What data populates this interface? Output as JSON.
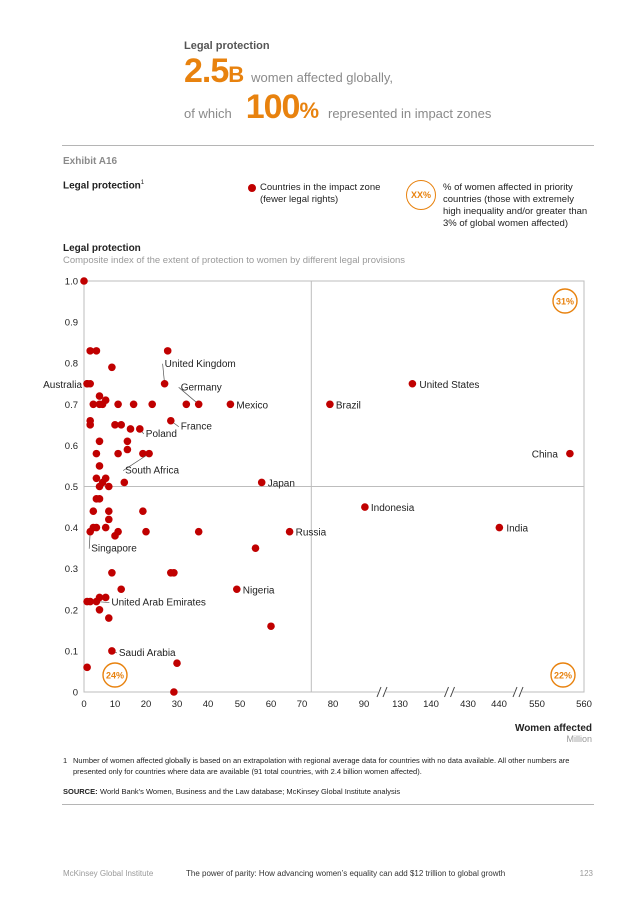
{
  "header": {
    "topic": "Legal protection",
    "stat1_value": "2.5",
    "stat1_unit": "B",
    "stat1_text": "women affected globally,",
    "stat2_prefix": "of which",
    "stat2_value": "100",
    "stat2_unit": "%",
    "stat2_text": "represented in impact zones"
  },
  "exhibit": "Exhibit A16",
  "legend": {
    "title": "Legal protection",
    "title_sup": "1",
    "dot_label": "Countries in the impact zone (fewer legal rights)",
    "badge_label": "XX%",
    "badge_desc": "% of women affected in priority countries (those with extremely high inequality and/or greater than 3% of global women affected)"
  },
  "chart_data": {
    "type": "scatter",
    "title": "Legal protection",
    "subtitle": "Composite index of the extent of protection to women by different legal provisions",
    "xlabel": "Women affected",
    "xunit": "Million",
    "x_ticks": [
      "0",
      "10",
      "20",
      "30",
      "40",
      "50",
      "60",
      "70",
      "80",
      "90",
      "130",
      "140",
      "430",
      "440",
      "550",
      "560"
    ],
    "y_ticks": [
      "0",
      "0.1",
      "0.2",
      "0.3",
      "0.4",
      "0.5",
      "0.6",
      "0.7",
      "0.8",
      "0.9",
      "1.0"
    ],
    "ylim": [
      0,
      1.0
    ],
    "x_axis_breaks": [
      [
        90,
        130
      ],
      [
        140,
        430
      ],
      [
        440,
        550
      ]
    ],
    "threshold_x": 73,
    "threshold_y": 0.5,
    "quadrant_labels": {
      "top_right": "31%",
      "bottom_left": "24%",
      "bottom_right": "22%"
    },
    "labeled_points": [
      {
        "name": "United Kingdom",
        "x": 26,
        "y": 0.75
      },
      {
        "name": "Australia",
        "x": 1,
        "y": 0.75
      },
      {
        "name": "Germany",
        "x": 37,
        "y": 0.7
      },
      {
        "name": "Mexico",
        "x": 47,
        "y": 0.7
      },
      {
        "name": "France",
        "x": 28,
        "y": 0.66
      },
      {
        "name": "Poland",
        "x": 18,
        "y": 0.64
      },
      {
        "name": "South Africa",
        "x": 21,
        "y": 0.58
      },
      {
        "name": "Japan",
        "x": 57,
        "y": 0.51
      },
      {
        "name": "Russia",
        "x": 66,
        "y": 0.39
      },
      {
        "name": "Nigeria",
        "x": 49,
        "y": 0.25
      },
      {
        "name": "United Arab Emirates",
        "x": 4,
        "y": 0.22
      },
      {
        "name": "Singapore",
        "x": 2,
        "y": 0.39
      },
      {
        "name": "Saudi Arabia",
        "x": 9,
        "y": 0.1
      },
      {
        "name": "Brazil",
        "x": 79,
        "y": 0.7
      },
      {
        "name": "United States",
        "x": 134,
        "y": 0.75
      },
      {
        "name": "Indonesia",
        "x": 91,
        "y": 0.45
      },
      {
        "name": "India",
        "x": 441,
        "y": 0.4
      },
      {
        "name": "China",
        "x": 557,
        "y": 0.58
      }
    ],
    "other_points": [
      [
        0,
        1.0
      ],
      [
        2,
        0.83
      ],
      [
        4,
        0.83
      ],
      [
        27,
        0.83
      ],
      [
        9,
        0.79
      ],
      [
        1,
        0.75
      ],
      [
        2,
        0.75
      ],
      [
        2,
        0.66
      ],
      [
        2,
        0.65
      ],
      [
        3,
        0.7
      ],
      [
        5,
        0.7
      ],
      [
        5,
        0.72
      ],
      [
        6,
        0.7
      ],
      [
        7,
        0.71
      ],
      [
        11,
        0.7
      ],
      [
        16,
        0.7
      ],
      [
        22,
        0.7
      ],
      [
        33,
        0.7
      ],
      [
        10,
        0.65
      ],
      [
        12,
        0.65
      ],
      [
        15,
        0.64
      ],
      [
        5,
        0.61
      ],
      [
        14,
        0.61
      ],
      [
        14,
        0.59
      ],
      [
        4,
        0.58
      ],
      [
        11,
        0.58
      ],
      [
        19,
        0.58
      ],
      [
        5,
        0.55
      ],
      [
        4,
        0.52
      ],
      [
        6,
        0.51
      ],
      [
        7,
        0.52
      ],
      [
        8,
        0.5
      ],
      [
        5,
        0.5
      ],
      [
        13,
        0.51
      ],
      [
        4,
        0.47
      ],
      [
        5,
        0.47
      ],
      [
        3,
        0.44
      ],
      [
        8,
        0.44
      ],
      [
        19,
        0.44
      ],
      [
        8,
        0.42
      ],
      [
        3,
        0.4
      ],
      [
        4,
        0.4
      ],
      [
        7,
        0.4
      ],
      [
        10,
        0.38
      ],
      [
        11,
        0.39
      ],
      [
        20,
        0.39
      ],
      [
        37,
        0.39
      ],
      [
        55,
        0.35
      ],
      [
        9,
        0.29
      ],
      [
        28,
        0.29
      ],
      [
        29,
        0.29
      ],
      [
        12,
        0.25
      ],
      [
        1,
        0.22
      ],
      [
        2,
        0.22
      ],
      [
        5,
        0.23
      ],
      [
        7,
        0.23
      ],
      [
        5,
        0.2
      ],
      [
        8,
        0.18
      ],
      [
        60,
        0.16
      ],
      [
        30,
        0.07
      ],
      [
        1,
        0.06
      ],
      [
        29,
        0.0
      ]
    ]
  },
  "footnote": {
    "num": "1",
    "text": "Number of women affected globally is based on an extrapolation with regional average data for countries with no data available. All other numbers are presented only for countries where data are available (91 total countries, with 2.4 billion women affected)."
  },
  "source": {
    "label": "SOURCE:",
    "text": "World Bank’s Women, Business and the Law database; McKinsey Global Institute analysis"
  },
  "footer": {
    "publisher": "McKinsey Global Institute",
    "doc_title": "The power of parity: How advancing women’s equality can add $12 trillion to global growth",
    "page": "123"
  },
  "colors": {
    "accent": "#e8820e",
    "point": "#c00000",
    "grid": "#bdbdbd",
    "text": "#222222"
  }
}
